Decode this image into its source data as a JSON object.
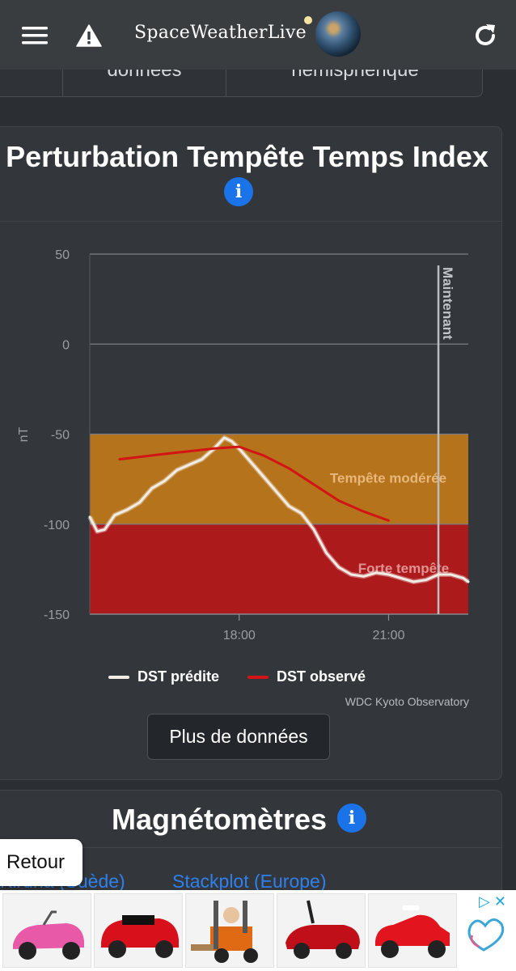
{
  "nav": {
    "brand": "SpaceWeatherLive"
  },
  "subnav": {
    "tabs": [
      "",
      "données",
      "hémisphérique"
    ]
  },
  "panel": {
    "title": "Perturbation Tempête Temps Index",
    "more_button": "Plus de données",
    "credits": "WDC Kyoto Observatory"
  },
  "chart_data": {
    "type": "line",
    "title": "",
    "xlabel": "",
    "ylabel": "nT",
    "ylim": [
      -150,
      50
    ],
    "yticks": [
      "50",
      "0",
      "-50",
      "-100",
      "-150"
    ],
    "xticks": [
      "18:00",
      "21:00"
    ],
    "now_label": "Maintenant",
    "bands": [
      {
        "label": "Tempête modérée",
        "from": -100,
        "to": -50,
        "color": "#b5731b"
      },
      {
        "label": "Forte tempête",
        "from": -150,
        "to": -100,
        "color": "#ad1a1c"
      }
    ],
    "series": [
      {
        "name": "DST prédite",
        "color": "#f1ece4",
        "x": [
          15.0,
          15.15,
          15.3,
          15.5,
          15.75,
          16.0,
          16.25,
          16.5,
          16.75,
          17.0,
          17.25,
          17.5,
          17.7,
          17.85,
          18.0,
          18.25,
          18.5,
          18.75,
          19.0,
          19.25,
          19.5,
          19.75,
          20.0,
          20.25,
          20.5,
          20.75,
          21.0,
          21.25,
          21.5,
          21.75,
          22.0,
          22.25,
          22.5,
          22.6
        ],
        "values": [
          -96,
          -104,
          -103,
          -95,
          -92,
          -88,
          -80,
          -76,
          -70,
          -67,
          -64,
          -58,
          -52,
          -54,
          -58,
          -66,
          -74,
          -82,
          -90,
          -94,
          -103,
          -116,
          -124,
          -128,
          -129,
          -127,
          -128,
          -130,
          -132,
          -131,
          -128,
          -128,
          -130,
          -132
        ]
      },
      {
        "name": "DST observé",
        "color": "#d21414",
        "x": [
          15.6,
          16.5,
          17.5,
          18.0,
          18.5,
          19.0,
          19.5,
          20.0,
          20.5,
          21.0
        ],
        "values": [
          -64,
          -61,
          -58,
          -57,
          -62,
          -69,
          -78,
          -87,
          -93,
          -98
        ]
      }
    ],
    "now_x": 22.0,
    "grid": true,
    "legend": "bottom"
  },
  "magnetometers": {
    "title": "Magnétomètres",
    "links": [
      "Kiruna (Suède)",
      "Stackplot (Europe)"
    ]
  },
  "back_button": "Retour",
  "ad": {
    "items": [
      "pink-kids-car",
      "red-kids-car",
      "kids-forklift",
      "red-kids-racer",
      "red-bobby-car"
    ]
  }
}
